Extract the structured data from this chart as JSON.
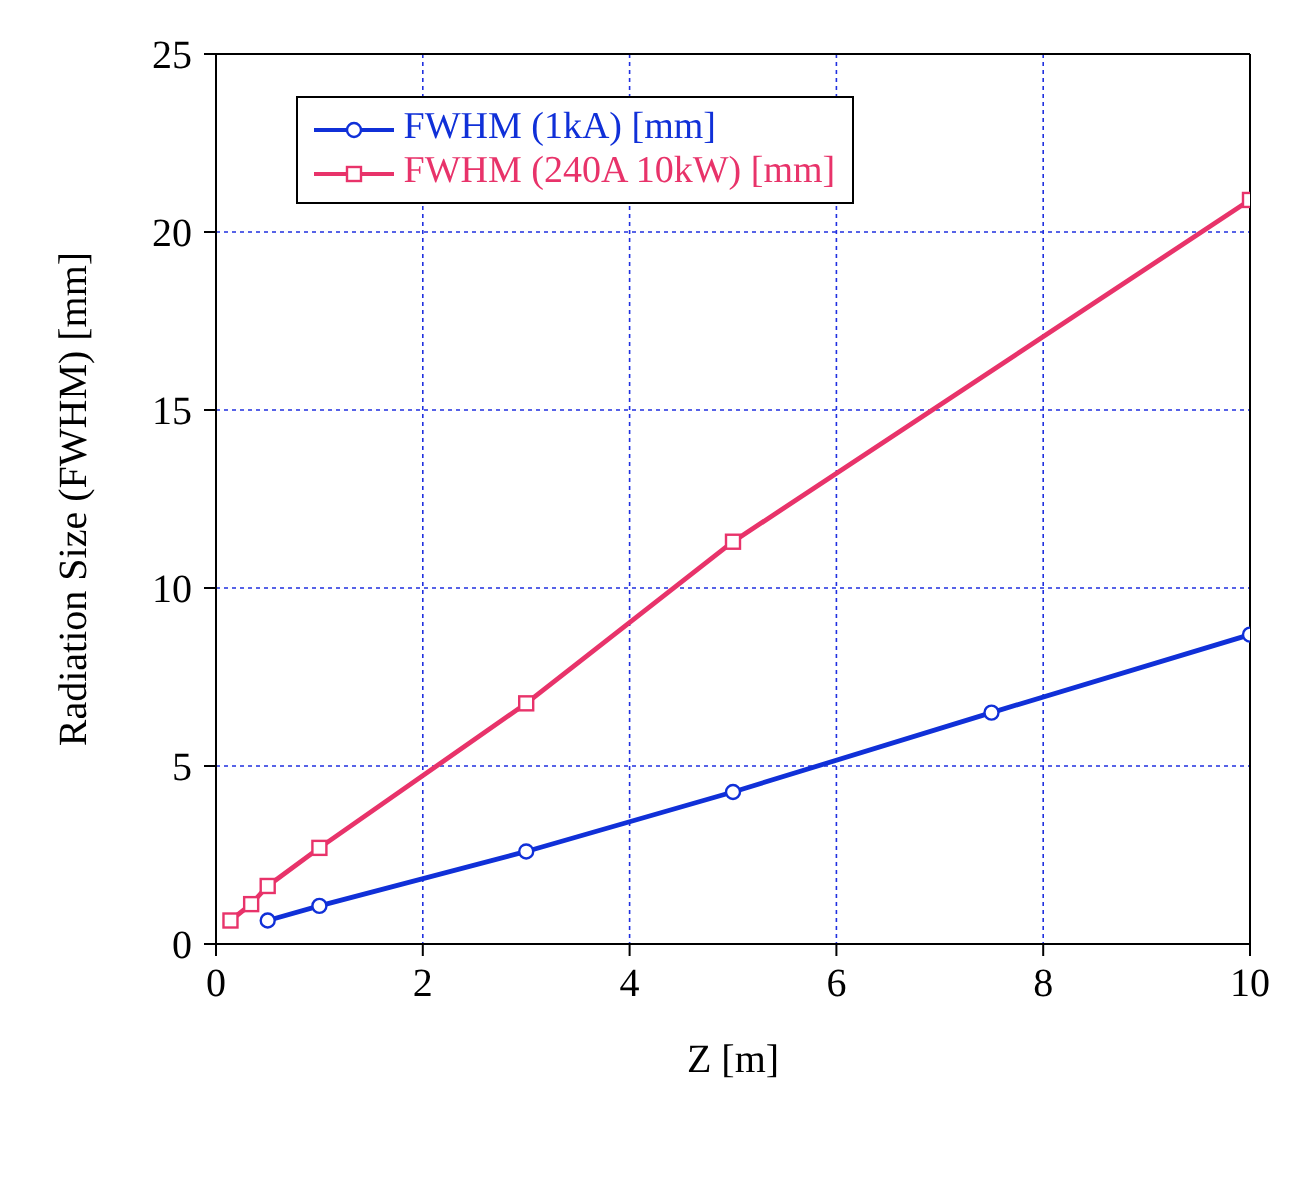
{
  "chart_data": {
    "type": "line",
    "xlabel": "Z [m]",
    "ylabel": "Radiation Size (FWHM) [mm]",
    "xlim": [
      0,
      10
    ],
    "xticks": [
      0,
      2,
      4,
      6,
      8,
      10
    ],
    "ylim": [
      0,
      25
    ],
    "yticks": [
      0,
      5,
      10,
      15,
      20,
      25
    ],
    "grid": true,
    "legend": "top left",
    "series": [
      {
        "name": "FWHM (1kA) [mm]",
        "color": "#1030d8",
        "marker": "circle",
        "x": [
          0.5,
          1,
          3,
          5,
          7.5,
          10
        ],
        "values": [
          0.66,
          1.07,
          2.6,
          4.27,
          6.5,
          8.69
        ]
      },
      {
        "name": "FWHM (240A 10kW) [mm]",
        "color": "#e8336a",
        "marker": "square",
        "x": [
          0.14,
          0.34,
          0.5,
          1,
          3,
          5,
          10
        ],
        "values": [
          0.66,
          1.12,
          1.63,
          2.7,
          6.76,
          11.3,
          20.9
        ]
      }
    ]
  }
}
